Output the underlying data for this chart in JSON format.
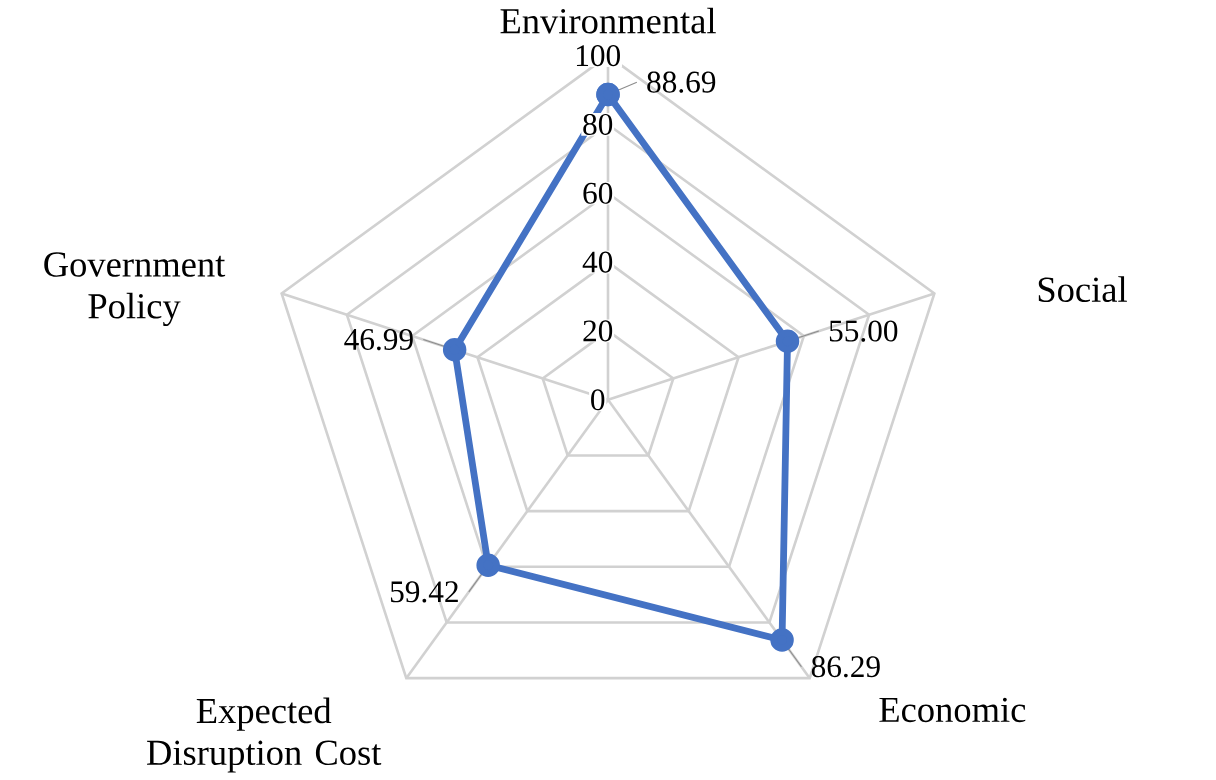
{
  "chart_data": {
    "type": "radar",
    "categories": [
      "Environmental",
      "Social",
      "Economic",
      "Expected Disruption Cost",
      "Government Policy"
    ],
    "series": [
      {
        "color": "#4472c4",
        "values": [
          88.69,
          55.0,
          86.29,
          59.42,
          46.99
        ],
        "value_labels": [
          "88.69",
          "55.00",
          "86.29",
          "59.42",
          "46.99"
        ]
      }
    ],
    "ylim": [
      0,
      100
    ],
    "yticks": [
      0,
      20,
      40,
      60,
      80,
      100
    ],
    "marker": "circle",
    "grid": true
  }
}
